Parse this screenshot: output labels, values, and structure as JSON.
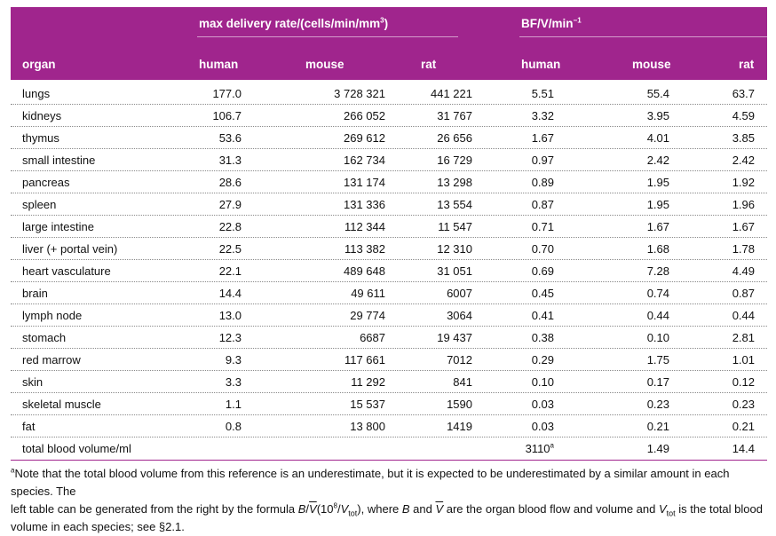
{
  "header": {
    "group_left": "max delivery rate/(cells/min/mm",
    "group_left_sup": "3",
    "group_left_close": ")",
    "group_right": "BF/V/min",
    "group_right_sup": "−1",
    "columns": {
      "organ": "organ",
      "human": "human",
      "mouse": "mouse",
      "rat": "rat",
      "bf_human": "human",
      "bf_mouse": "mouse",
      "bf_rat": "rat"
    }
  },
  "rows": [
    {
      "organ": "lungs",
      "human": "177.0",
      "mouse": "3 728 321",
      "rat": "441 221",
      "bf_human": "5.51",
      "bf_mouse": "55.4",
      "bf_rat": "63.7"
    },
    {
      "organ": "kidneys",
      "human": "106.7",
      "mouse": "266 052",
      "rat": "31 767",
      "bf_human": "3.32",
      "bf_mouse": "3.95",
      "bf_rat": "4.59"
    },
    {
      "organ": "thymus",
      "human": "53.6",
      "mouse": "269 612",
      "rat": "26 656",
      "bf_human": "1.67",
      "bf_mouse": "4.01",
      "bf_rat": "3.85"
    },
    {
      "organ": "small intestine",
      "human": "31.3",
      "mouse": "162 734",
      "rat": "16 729",
      "bf_human": "0.97",
      "bf_mouse": "2.42",
      "bf_rat": "2.42"
    },
    {
      "organ": "pancreas",
      "human": "28.6",
      "mouse": "131 174",
      "rat": "13 298",
      "bf_human": "0.89",
      "bf_mouse": "1.95",
      "bf_rat": "1.92"
    },
    {
      "organ": "spleen",
      "human": "27.9",
      "mouse": "131 336",
      "rat": "13 554",
      "bf_human": "0.87",
      "bf_mouse": "1.95",
      "bf_rat": "1.96"
    },
    {
      "organ": "large intestine",
      "human": "22.8",
      "mouse": "112 344",
      "rat": "11 547",
      "bf_human": "0.71",
      "bf_mouse": "1.67",
      "bf_rat": "1.67"
    },
    {
      "organ": "liver (+ portal vein)",
      "human": "22.5",
      "mouse": "113 382",
      "rat": "12 310",
      "bf_human": "0.70",
      "bf_mouse": "1.68",
      "bf_rat": "1.78"
    },
    {
      "organ": "heart vasculature",
      "human": "22.1",
      "mouse": "489 648",
      "rat": "31 051",
      "bf_human": "0.69",
      "bf_mouse": "7.28",
      "bf_rat": "4.49"
    },
    {
      "organ": "brain",
      "human": "14.4",
      "mouse": "49 611",
      "rat": "6007",
      "bf_human": "0.45",
      "bf_mouse": "0.74",
      "bf_rat": "0.87"
    },
    {
      "organ": "lymph node",
      "human": "13.0",
      "mouse": "29 774",
      "rat": "3064",
      "bf_human": "0.41",
      "bf_mouse": "0.44",
      "bf_rat": "0.44"
    },
    {
      "organ": "stomach",
      "human": "12.3",
      "mouse": "6687",
      "rat": "19 437",
      "bf_human": "0.38",
      "bf_mouse": "0.10",
      "bf_rat": "2.81"
    },
    {
      "organ": "red marrow",
      "human": "9.3",
      "mouse": "117 661",
      "rat": "7012",
      "bf_human": "0.29",
      "bf_mouse": "1.75",
      "bf_rat": "1.01"
    },
    {
      "organ": "skin",
      "human": "3.3",
      "mouse": "11 292",
      "rat": "841",
      "bf_human": "0.10",
      "bf_mouse": "0.17",
      "bf_rat": "0.12"
    },
    {
      "organ": "skeletal muscle",
      "human": "1.1",
      "mouse": "15 537",
      "rat": "1590",
      "bf_human": "0.03",
      "bf_mouse": "0.23",
      "bf_rat": "0.23"
    },
    {
      "organ": "fat",
      "human": "0.8",
      "mouse": "13 800",
      "rat": "1419",
      "bf_human": "0.03",
      "bf_mouse": "0.21",
      "bf_rat": "0.21"
    },
    {
      "organ": "total blood volume/ml",
      "human": "",
      "mouse": "",
      "rat": "",
      "bf_human": "3110",
      "bf_human_sup": "a",
      "bf_mouse": "1.49",
      "bf_rat": "14.4"
    }
  ],
  "footnote": {
    "marker": "a",
    "line1": "Note that the total blood volume from this reference is an underestimate, but it is expected to be underestimated by a similar amount in each species. The",
    "line2_a": "left table can be generated from the right by the formula ",
    "formula_B": "B",
    "formula_slash": "/",
    "formula_V": "V",
    "formula_open": "(10",
    "formula_exp": "8",
    "formula_div": "/",
    "formula_Vtot": "V",
    "formula_tot": "tot",
    "formula_close": "),",
    "line2_b": " where ",
    "line2_B": "B",
    "line2_c": " and ",
    "line2_V": "V",
    "line2_d": " are the organ blood flow and volume and ",
    "line2_Vtot": "V",
    "line2_tot": "tot",
    "line2_e": " is the total blood",
    "line3": "volume in each species; see §2.1."
  },
  "colors": {
    "header_bg": "#a0258d",
    "header_text": "#ffffff"
  }
}
